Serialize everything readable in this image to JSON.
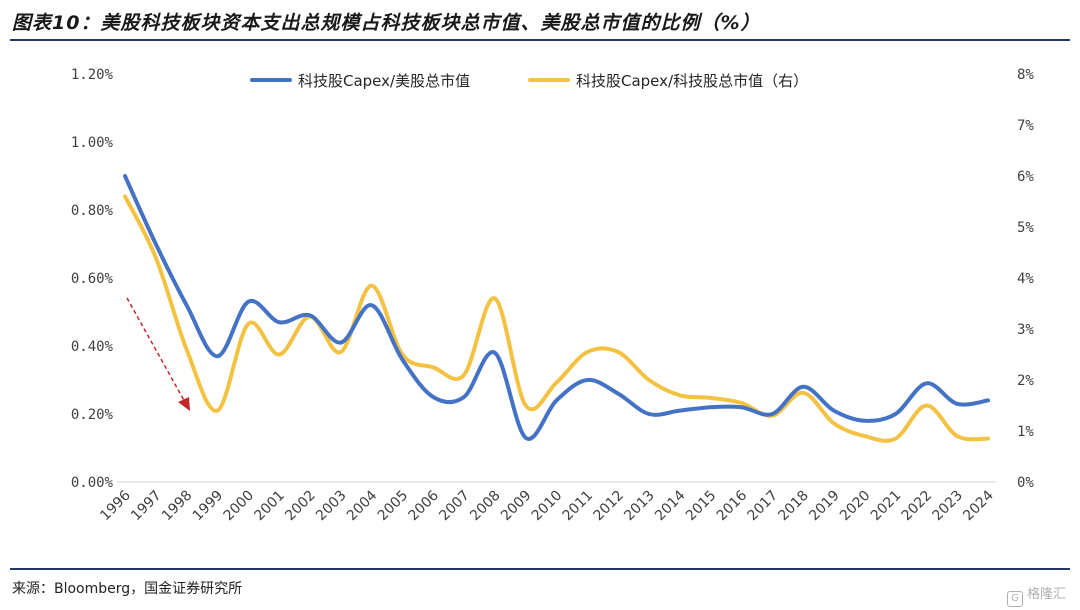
{
  "title": "图表10：美股科技板块资本支出总规模占科技板块总市值、美股总市值的比例（%）",
  "source": "来源：Bloomberg，国金证券研究所",
  "watermark": "格隆汇",
  "chart_data": {
    "type": "line",
    "x": [
      "1996",
      "1997",
      "1998",
      "1999",
      "2000",
      "2001",
      "2002",
      "2003",
      "2004",
      "2005",
      "2006",
      "2007",
      "2008",
      "2009",
      "2010",
      "2011",
      "2012",
      "2013",
      "2014",
      "2015",
      "2016",
      "2017",
      "2018",
      "2019",
      "2020",
      "2021",
      "2022",
      "2023",
      "2024"
    ],
    "y_left": {
      "range": [
        0,
        1.2
      ],
      "ticks": [
        0,
        0.2,
        0.4,
        0.6,
        0.8,
        1.0,
        1.2
      ],
      "tick_labels": [
        "0.00%",
        "0.20%",
        "0.40%",
        "0.60%",
        "0.80%",
        "1.00%",
        "1.20%"
      ]
    },
    "y_right": {
      "range": [
        0,
        8
      ],
      "ticks": [
        0,
        1,
        2,
        3,
        4,
        5,
        6,
        7,
        8
      ],
      "tick_labels": [
        "0%",
        "1%",
        "2%",
        "3%",
        "4%",
        "5%",
        "6%",
        "7%",
        "8%"
      ]
    },
    "series": [
      {
        "name": "科技股Capex/美股总市值",
        "axis": "left",
        "color": "#4472c4",
        "values": [
          0.9,
          0.7,
          0.52,
          0.37,
          0.53,
          0.47,
          0.49,
          0.41,
          0.52,
          0.36,
          0.25,
          0.25,
          0.38,
          0.13,
          0.24,
          0.3,
          0.26,
          0.2,
          0.21,
          0.22,
          0.22,
          0.2,
          0.28,
          0.21,
          0.18,
          0.2,
          0.29,
          0.23,
          0.24
        ]
      },
      {
        "name": "科技股Capex/科技股总市值（右）",
        "axis": "right",
        "color": "#f4c242",
        "values": [
          5.6,
          4.4,
          2.6,
          1.4,
          3.1,
          2.5,
          3.25,
          2.55,
          3.85,
          2.5,
          2.25,
          2.1,
          3.6,
          1.5,
          1.95,
          2.55,
          2.55,
          2.0,
          1.7,
          1.65,
          1.55,
          1.3,
          1.75,
          1.15,
          0.9,
          0.85,
          1.5,
          0.9,
          0.85
        ]
      }
    ],
    "legend_position": "top",
    "grid": false
  }
}
